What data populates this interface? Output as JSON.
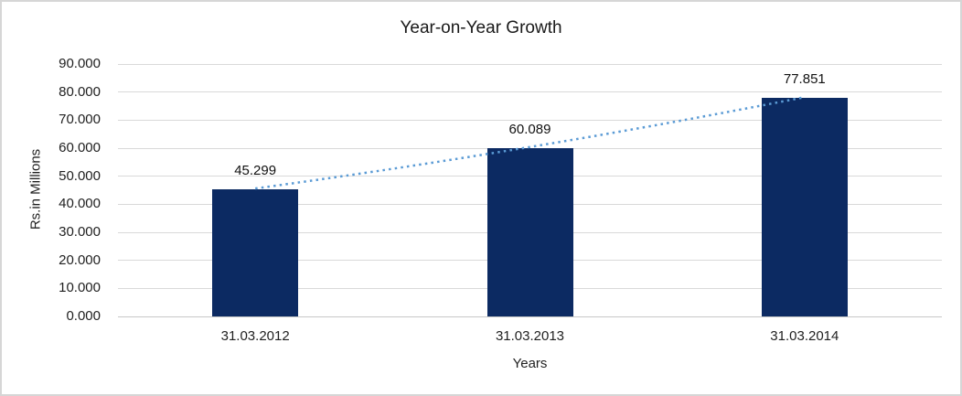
{
  "window": {
    "background": "#ffffff",
    "border_color": "#d6d6d6"
  },
  "chart_data": {
    "type": "bar",
    "title": "Year-on-Year Growth",
    "xlabel": "Years",
    "ylabel": "Rs.in Millions",
    "categories": [
      "31.03.2012",
      "31.03.2013",
      "31.03.2014"
    ],
    "values": [
      45.299,
      60.089,
      77.851
    ],
    "data_labels": [
      "45.299",
      "60.089",
      "77.851"
    ],
    "ylim": [
      0,
      90
    ],
    "ytick_step": 10,
    "ytick_labels": [
      "90.000",
      "80.000",
      "70.000",
      "60.000",
      "50.000",
      "40.000",
      "30.000",
      "20.000",
      "10.000",
      "0.000"
    ],
    "grid": true,
    "legend": "none",
    "trendline": {
      "type": "dotted-growth-trend",
      "color": "#5b9bd5",
      "connects": "tops of bars"
    },
    "colors": {
      "bar": "#0c2a62",
      "gridline": "#d9d9d9",
      "axis_baseline": "#c8c8c8",
      "text": "#1f1f1f"
    }
  }
}
